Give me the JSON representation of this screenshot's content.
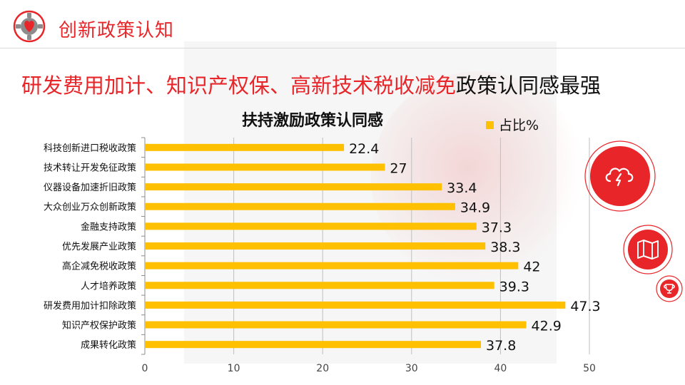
{
  "header": {
    "section_title": "创新政策认知",
    "headline_red": "研发费用加计、知识产权保、高新技术税收减免",
    "headline_black": "政策认同感最强"
  },
  "colors": {
    "accent_red": "#e8262a",
    "bar": "#ffc000",
    "grid": "#bfbfbf",
    "text": "#111111"
  },
  "icons": {
    "logo": "gear-heart-logo",
    "badge_1": "cloud-lightning-icon",
    "badge_2": "map-icon",
    "badge_3": "trophy-icon"
  },
  "chart_data": {
    "type": "bar",
    "orientation": "horizontal",
    "title": "扶持激励政策认同感",
    "legend": {
      "label": "占比%",
      "position": "top-right"
    },
    "categories": [
      "科技创新进口税收政策",
      "技术转让开发免征政策",
      "仪器设备加速折旧政策",
      "大众创业万众创新政策",
      "金融支持政策",
      "优先发展产业政策",
      "高企减免税收政策",
      "人才培养政策",
      "研发费用加计扣除政策",
      "知识产权保护政策",
      "成果转化政策"
    ],
    "series": [
      {
        "name": "占比%",
        "values": [
          22.4,
          27,
          33.4,
          34.9,
          37.3,
          38.3,
          42,
          39.3,
          47.3,
          42.9,
          37.8
        ]
      }
    ],
    "xlim": [
      0,
      50
    ],
    "xticks": [
      0,
      10,
      20,
      30,
      40,
      50
    ],
    "grid": true
  }
}
